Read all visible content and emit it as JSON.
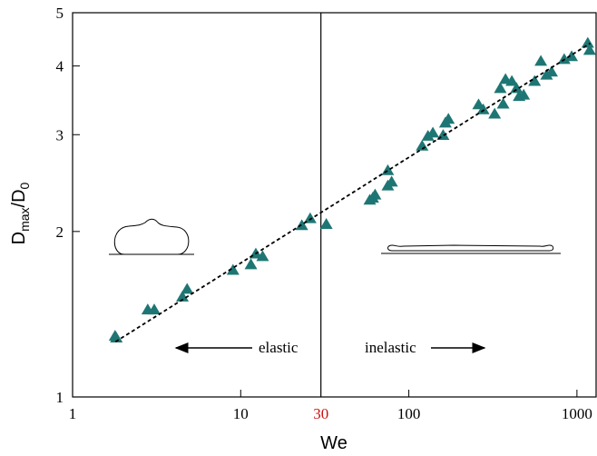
{
  "chart_data": {
    "type": "scatter",
    "xlabel": "We",
    "ylabel": [
      "D",
      "max",
      "/D",
      "0"
    ],
    "log_x": true,
    "log_y": true,
    "xlim": [
      1,
      1300
    ],
    "ylim": [
      1,
      5
    ],
    "xticks": [
      1,
      10,
      100,
      1000
    ],
    "yticks": [
      1,
      2,
      3,
      4,
      5
    ],
    "marker_color": "#1e7674",
    "vline": 30,
    "vline_color": "#cc1111",
    "annotations": [
      "elastic",
      "inelastic"
    ],
    "fit": {
      "x": [
        1.8,
        1200
      ],
      "y": [
        1.26,
        4.4
      ]
    },
    "x": [
      1.79,
      1.82,
      2.8,
      3.06,
      4.5,
      4.8,
      9.0,
      11.5,
      12.3,
      13.5,
      23.1,
      25.9,
      32.3,
      58.6,
      63,
      61,
      75,
      79,
      75,
      120,
      130,
      139,
      160,
      172,
      165,
      260,
      277,
      324,
      364,
      376,
      410,
      350,
      437,
      482,
      453,
      560,
      610,
      660,
      707,
      840,
      930,
      1160,
      1190
    ],
    "y": [
      1.29,
      1.28,
      1.44,
      1.44,
      1.52,
      1.57,
      1.7,
      1.74,
      1.82,
      1.8,
      2.05,
      2.11,
      2.06,
      2.28,
      2.33,
      2.3,
      2.58,
      2.46,
      2.42,
      2.86,
      2.98,
      3.02,
      2.99,
      3.2,
      3.15,
      3.4,
      3.33,
      3.27,
      3.41,
      3.78,
      3.75,
      3.64,
      3.64,
      3.54,
      3.52,
      3.75,
      4.08,
      3.85,
      3.9,
      4.11,
      4.16,
      4.4,
      4.27
    ]
  }
}
